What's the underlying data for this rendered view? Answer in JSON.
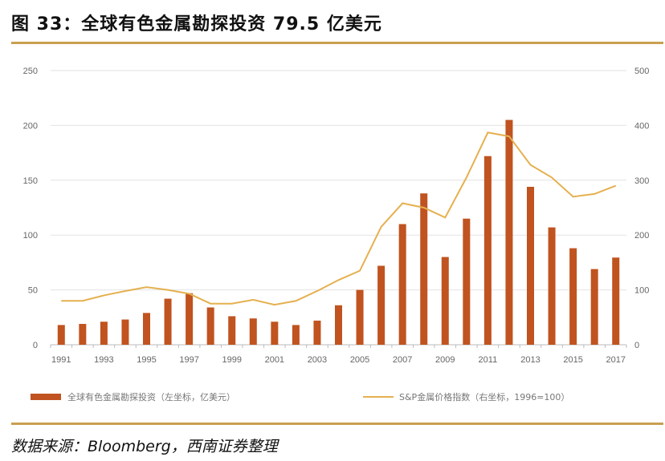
{
  "title": "图 33：全球有色金属勘探投资 79.5 亿美元",
  "source": "数据来源：Bloomberg，西南证券整理",
  "chart_data": {
    "type": "bar+line",
    "title": "图 33：全球有色金属勘探投资 79.5 亿美元",
    "categories": [
      "1991",
      "1992",
      "1993",
      "1994",
      "1995",
      "1996",
      "1997",
      "1998",
      "1999",
      "2000",
      "2001",
      "2002",
      "2003",
      "2004",
      "2005",
      "2006",
      "2007",
      "2008",
      "2009",
      "2010",
      "2011",
      "2012",
      "2013",
      "2014",
      "2015",
      "2016",
      "2017"
    ],
    "x_tick_labels": [
      "1991",
      "1993",
      "1995",
      "1997",
      "1999",
      "2001",
      "2003",
      "2005",
      "2007",
      "2009",
      "2011",
      "2013",
      "2015",
      "2017"
    ],
    "series": [
      {
        "name": "全球有色金属勘探投资（左坐标，亿美元）",
        "type": "bar",
        "axis": "left",
        "color": "#c0531f",
        "values": [
          18,
          19,
          21,
          23,
          29,
          42,
          47,
          34,
          26,
          24,
          21,
          18,
          22,
          36,
          50,
          72,
          110,
          138,
          80,
          115,
          172,
          205,
          144,
          107,
          88,
          69,
          79.5
        ]
      },
      {
        "name": "S&P金属价格指数（右坐标，1996=100）",
        "type": "line",
        "axis": "right",
        "color": "#e5b04f",
        "values": [
          80,
          80,
          90,
          98,
          105,
          100,
          93,
          75,
          75,
          82,
          73,
          80,
          98,
          118,
          135,
          215,
          258,
          250,
          232,
          305,
          387,
          380,
          328,
          305,
          270,
          275,
          290
        ]
      }
    ],
    "y_left": {
      "ylim": [
        0,
        250
      ],
      "ticks": [
        "0",
        "50",
        "100",
        "150",
        "200",
        "250"
      ]
    },
    "y_right": {
      "ylim": [
        0,
        500
      ],
      "ticks": [
        "0",
        "100",
        "200",
        "300",
        "400",
        "500"
      ]
    },
    "grid": true,
    "legend_position": "bottom"
  }
}
